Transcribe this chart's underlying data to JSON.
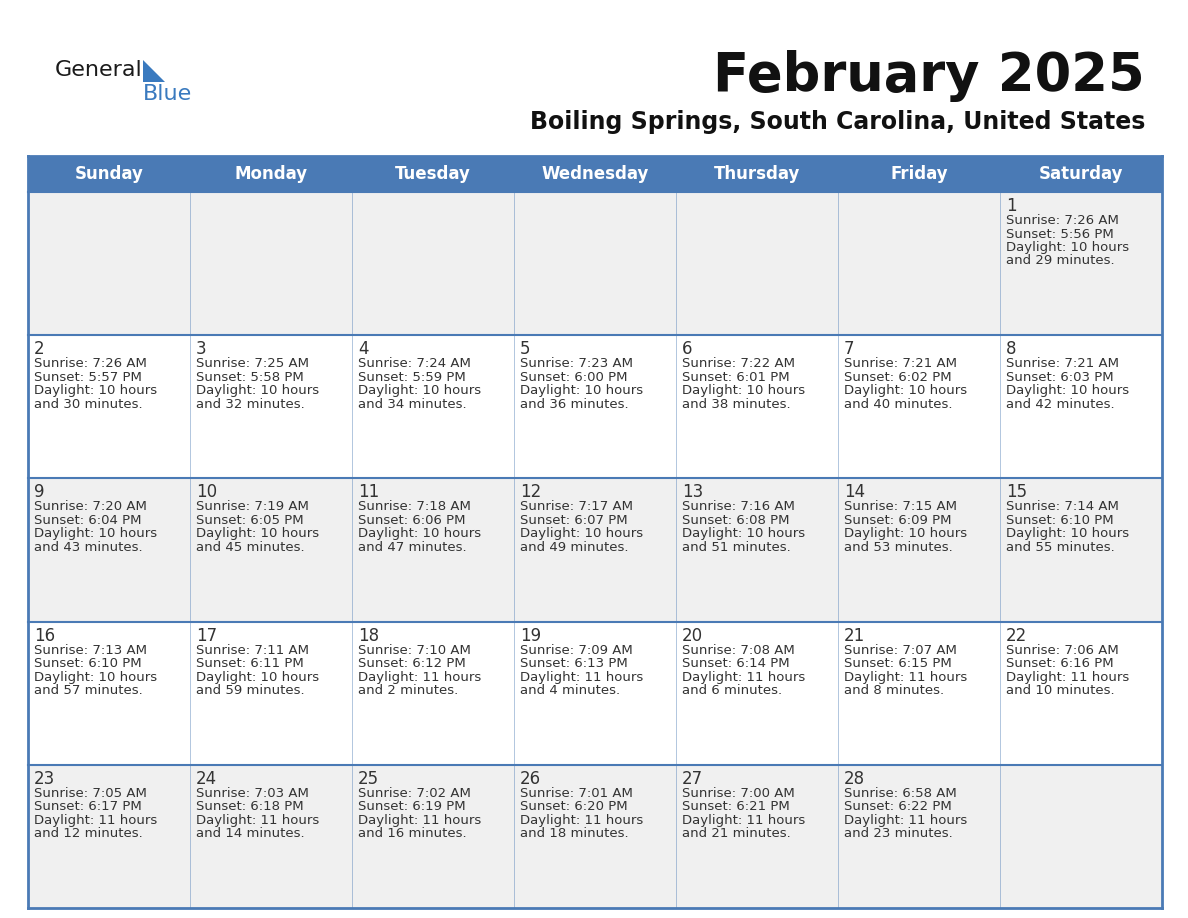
{
  "title": "February 2025",
  "subtitle": "Boiling Springs, South Carolina, United States",
  "days_of_week": [
    "Sunday",
    "Monday",
    "Tuesday",
    "Wednesday",
    "Thursday",
    "Friday",
    "Saturday"
  ],
  "header_bg": "#4a7ab5",
  "header_text": "#FFFFFF",
  "row_bg_odd": "#f0f0f0",
  "row_bg_even": "#ffffff",
  "text_color": "#333333",
  "date_color": "#333333",
  "line_color": "#4a7ab5",
  "border_color": "#4a7ab5",
  "calendar": [
    [
      null,
      null,
      null,
      null,
      null,
      null,
      1
    ],
    [
      2,
      3,
      4,
      5,
      6,
      7,
      8
    ],
    [
      9,
      10,
      11,
      12,
      13,
      14,
      15
    ],
    [
      16,
      17,
      18,
      19,
      20,
      21,
      22
    ],
    [
      23,
      24,
      25,
      26,
      27,
      28,
      null
    ]
  ],
  "cell_data": {
    "1": {
      "sunrise": "7:26 AM",
      "sunset": "5:56 PM",
      "daylight": "10 hours",
      "daylight2": "and 29 minutes."
    },
    "2": {
      "sunrise": "7:26 AM",
      "sunset": "5:57 PM",
      "daylight": "10 hours",
      "daylight2": "and 30 minutes."
    },
    "3": {
      "sunrise": "7:25 AM",
      "sunset": "5:58 PM",
      "daylight": "10 hours",
      "daylight2": "and 32 minutes."
    },
    "4": {
      "sunrise": "7:24 AM",
      "sunset": "5:59 PM",
      "daylight": "10 hours",
      "daylight2": "and 34 minutes."
    },
    "5": {
      "sunrise": "7:23 AM",
      "sunset": "6:00 PM",
      "daylight": "10 hours",
      "daylight2": "and 36 minutes."
    },
    "6": {
      "sunrise": "7:22 AM",
      "sunset": "6:01 PM",
      "daylight": "10 hours",
      "daylight2": "and 38 minutes."
    },
    "7": {
      "sunrise": "7:21 AM",
      "sunset": "6:02 PM",
      "daylight": "10 hours",
      "daylight2": "and 40 minutes."
    },
    "8": {
      "sunrise": "7:21 AM",
      "sunset": "6:03 PM",
      "daylight": "10 hours",
      "daylight2": "and 42 minutes."
    },
    "9": {
      "sunrise": "7:20 AM",
      "sunset": "6:04 PM",
      "daylight": "10 hours",
      "daylight2": "and 43 minutes."
    },
    "10": {
      "sunrise": "7:19 AM",
      "sunset": "6:05 PM",
      "daylight": "10 hours",
      "daylight2": "and 45 minutes."
    },
    "11": {
      "sunrise": "7:18 AM",
      "sunset": "6:06 PM",
      "daylight": "10 hours",
      "daylight2": "and 47 minutes."
    },
    "12": {
      "sunrise": "7:17 AM",
      "sunset": "6:07 PM",
      "daylight": "10 hours",
      "daylight2": "and 49 minutes."
    },
    "13": {
      "sunrise": "7:16 AM",
      "sunset": "6:08 PM",
      "daylight": "10 hours",
      "daylight2": "and 51 minutes."
    },
    "14": {
      "sunrise": "7:15 AM",
      "sunset": "6:09 PM",
      "daylight": "10 hours",
      "daylight2": "and 53 minutes."
    },
    "15": {
      "sunrise": "7:14 AM",
      "sunset": "6:10 PM",
      "daylight": "10 hours",
      "daylight2": "and 55 minutes."
    },
    "16": {
      "sunrise": "7:13 AM",
      "sunset": "6:10 PM",
      "daylight": "10 hours",
      "daylight2": "and 57 minutes."
    },
    "17": {
      "sunrise": "7:11 AM",
      "sunset": "6:11 PM",
      "daylight": "10 hours",
      "daylight2": "and 59 minutes."
    },
    "18": {
      "sunrise": "7:10 AM",
      "sunset": "6:12 PM",
      "daylight": "11 hours",
      "daylight2": "and 2 minutes."
    },
    "19": {
      "sunrise": "7:09 AM",
      "sunset": "6:13 PM",
      "daylight": "11 hours",
      "daylight2": "and 4 minutes."
    },
    "20": {
      "sunrise": "7:08 AM",
      "sunset": "6:14 PM",
      "daylight": "11 hours",
      "daylight2": "and 6 minutes."
    },
    "21": {
      "sunrise": "7:07 AM",
      "sunset": "6:15 PM",
      "daylight": "11 hours",
      "daylight2": "and 8 minutes."
    },
    "22": {
      "sunrise": "7:06 AM",
      "sunset": "6:16 PM",
      "daylight": "11 hours",
      "daylight2": "and 10 minutes."
    },
    "23": {
      "sunrise": "7:05 AM",
      "sunset": "6:17 PM",
      "daylight": "11 hours",
      "daylight2": "and 12 minutes."
    },
    "24": {
      "sunrise": "7:03 AM",
      "sunset": "6:18 PM",
      "daylight": "11 hours",
      "daylight2": "and 14 minutes."
    },
    "25": {
      "sunrise": "7:02 AM",
      "sunset": "6:19 PM",
      "daylight": "11 hours",
      "daylight2": "and 16 minutes."
    },
    "26": {
      "sunrise": "7:01 AM",
      "sunset": "6:20 PM",
      "daylight": "11 hours",
      "daylight2": "and 18 minutes."
    },
    "27": {
      "sunrise": "7:00 AM",
      "sunset": "6:21 PM",
      "daylight": "11 hours",
      "daylight2": "and 21 minutes."
    },
    "28": {
      "sunrise": "6:58 AM",
      "sunset": "6:22 PM",
      "daylight": "11 hours",
      "daylight2": "and 23 minutes."
    }
  },
  "fig_width": 11.88,
  "fig_height": 9.18,
  "dpi": 100
}
